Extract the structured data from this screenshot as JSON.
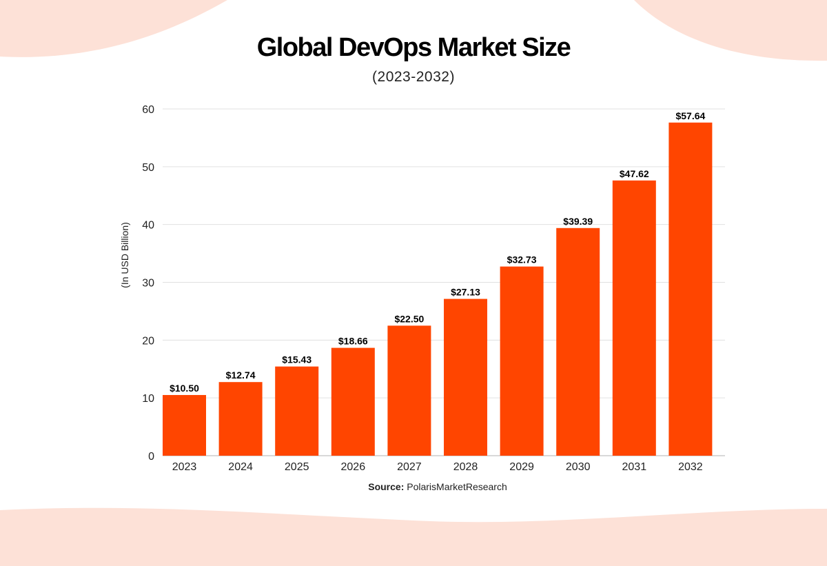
{
  "colors": {
    "bar": "#ff4500",
    "background_shape": "#fde1d7",
    "grid": "#e0e0e0"
  },
  "chart_data": {
    "type": "bar",
    "title": "Global DevOps Market Size",
    "subtitle": "(2023-2032)",
    "xlabel": "",
    "ylabel": "(In USD Billion)",
    "ylim": [
      0,
      60
    ],
    "yticks": [
      0,
      10,
      20,
      30,
      40,
      50,
      60
    ],
    "grid": true,
    "categories": [
      "2023",
      "2024",
      "2025",
      "2026",
      "2027",
      "2028",
      "2029",
      "2030",
      "2031",
      "2032"
    ],
    "values": [
      10.5,
      12.74,
      15.43,
      18.66,
      22.5,
      27.13,
      32.73,
      39.39,
      47.62,
      57.64
    ],
    "data_labels": [
      "$10.50",
      "$12.74",
      "$15.43",
      "$18.66",
      "$22.50",
      "$27.13",
      "$32.73",
      "$39.39",
      "$47.62",
      "$57.64"
    ]
  },
  "source": {
    "label": "Source:",
    "text": "PolarisMarketResearch"
  }
}
